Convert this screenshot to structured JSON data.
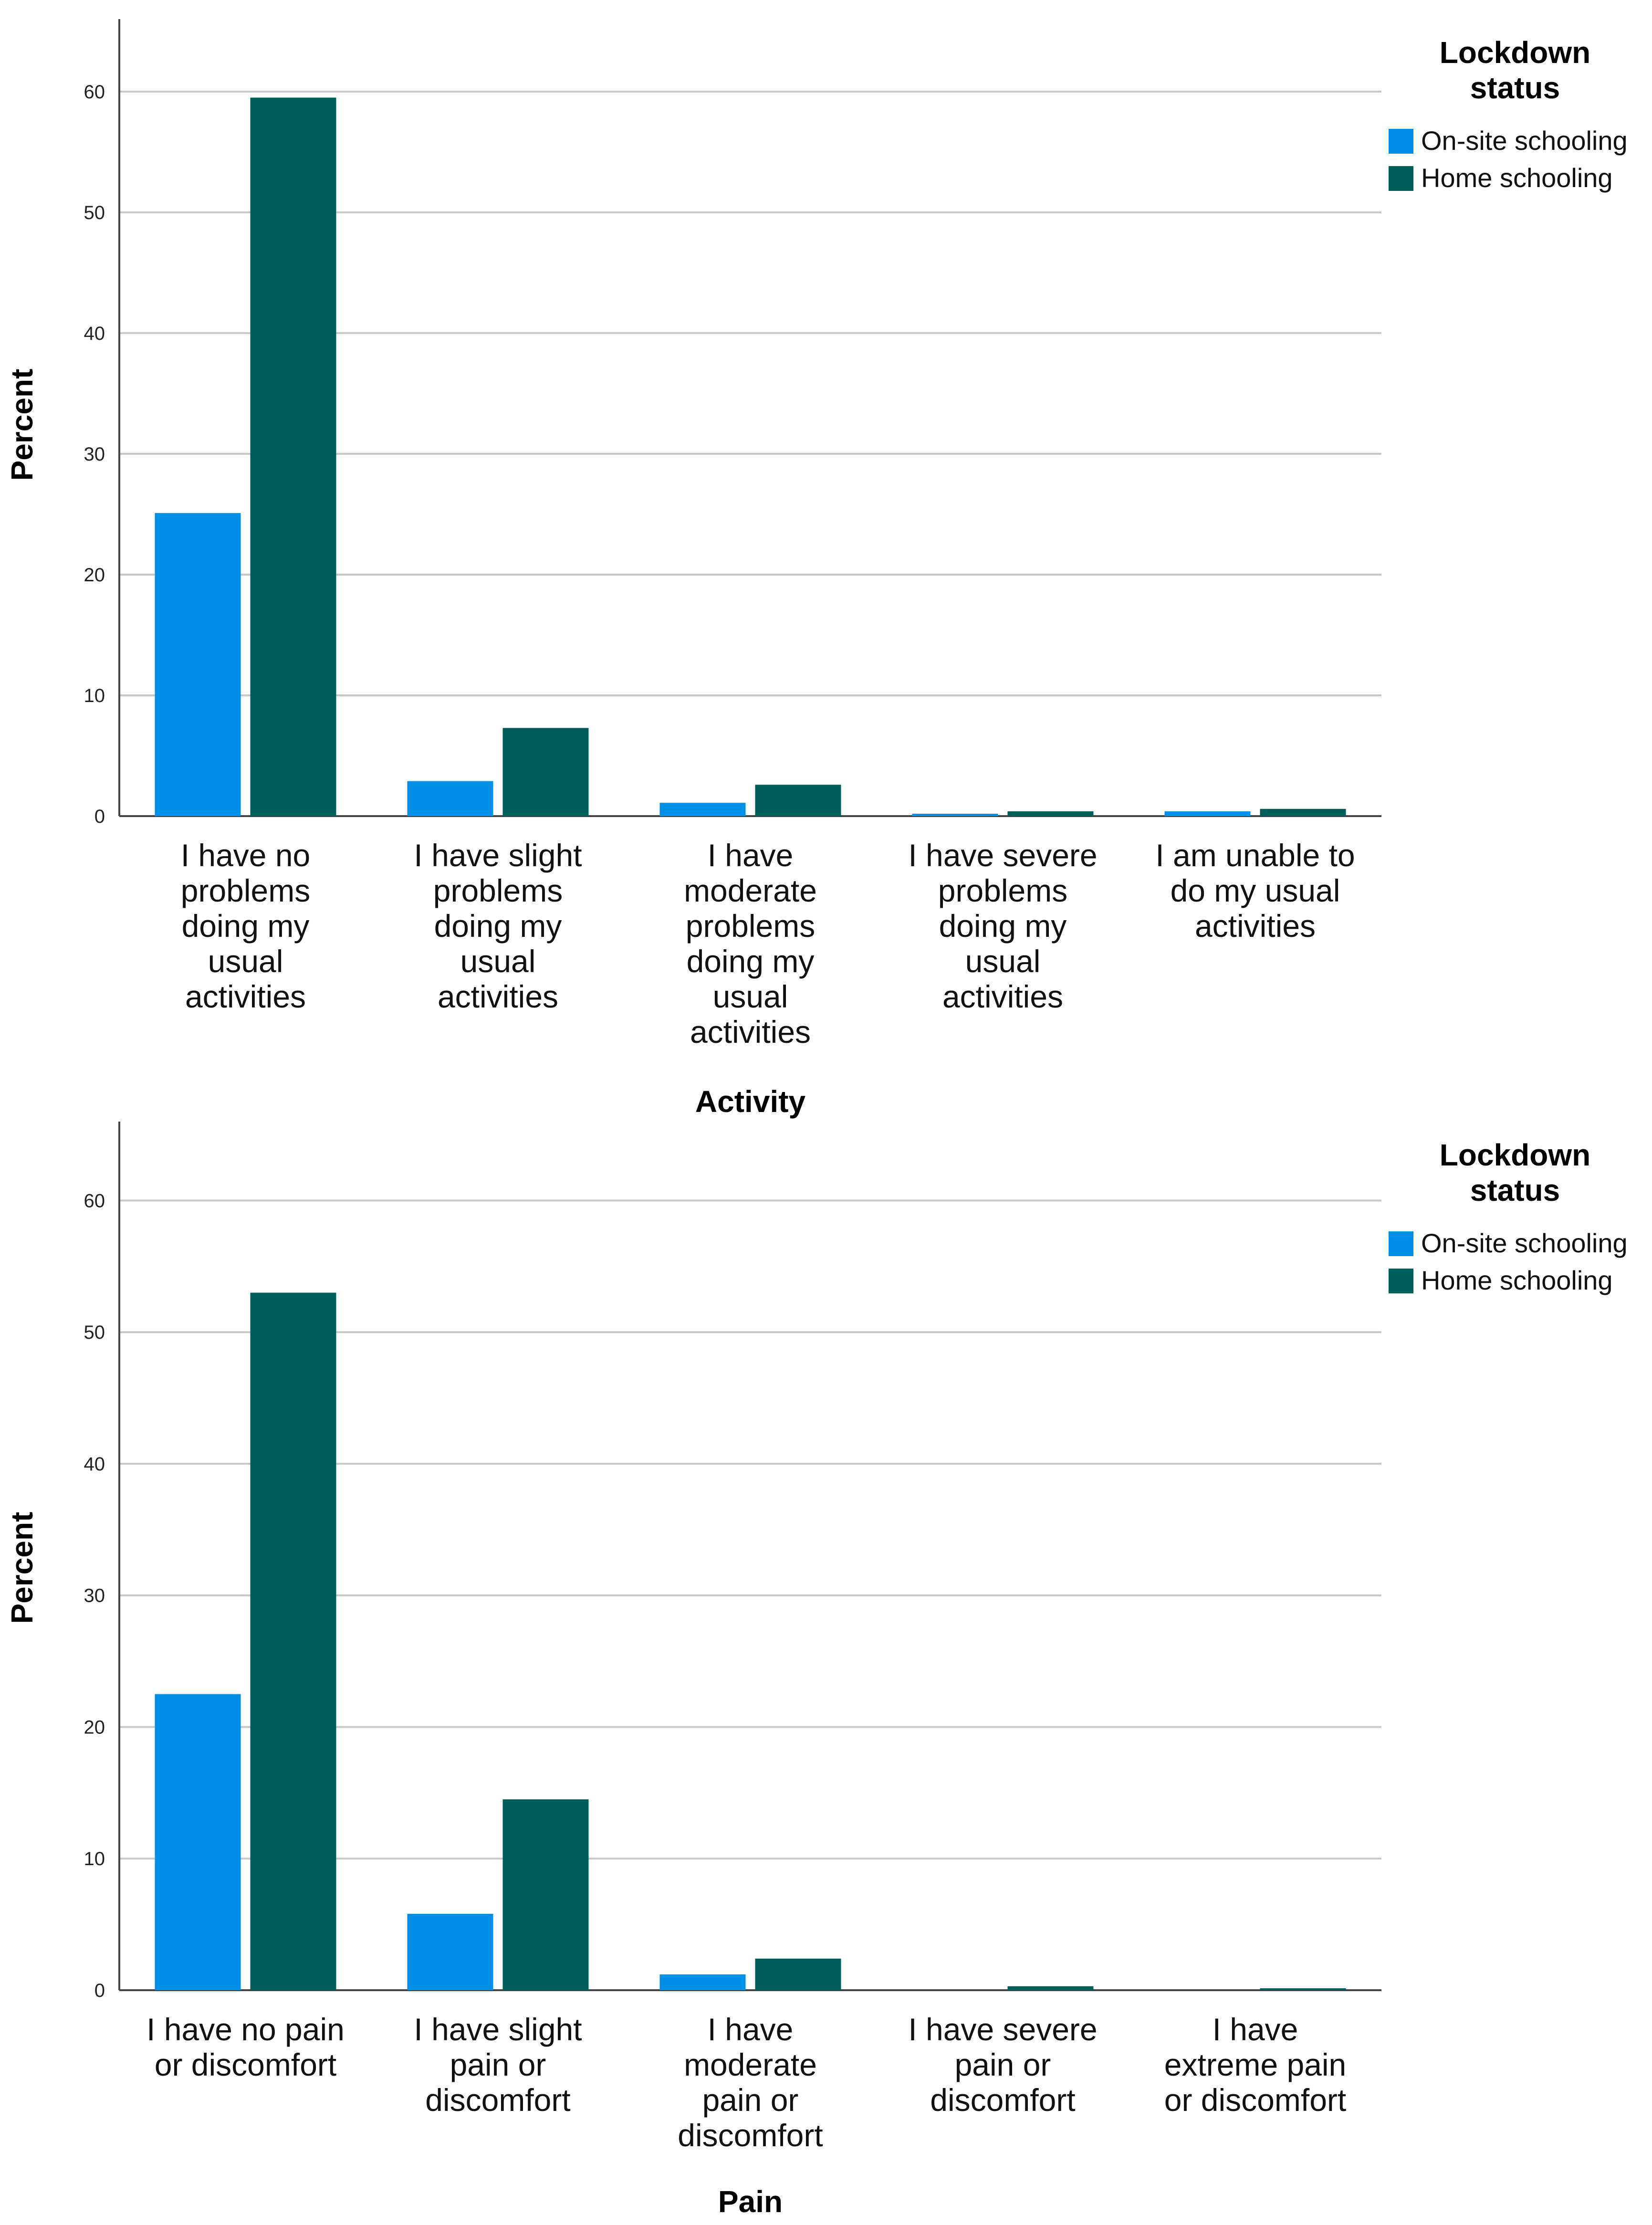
{
  "colors": {
    "on_site": "#0091e6",
    "home": "#005e5b",
    "grid": "#c8c8c8",
    "axis": "#444444"
  },
  "legend": {
    "title_line1": "Lockdown",
    "title_line2": "status"
  },
  "chart_data": [
    {
      "type": "bar",
      "title": "",
      "xlabel": "Activity",
      "ylabel": "Percent",
      "ylim": [
        0,
        66
      ],
      "yticks": [
        0,
        10,
        20,
        30,
        40,
        50,
        60
      ],
      "grid": true,
      "legend_position": "top-right",
      "categories": [
        [
          "I have no",
          "problems",
          "doing my",
          "usual",
          "activities"
        ],
        [
          "I have slight",
          "problems",
          "doing my",
          "usual",
          "activities"
        ],
        [
          "I have",
          "moderate",
          "problems",
          "doing my",
          "usual",
          "activities"
        ],
        [
          "I have severe",
          "problems",
          "doing my",
          "usual",
          "activities"
        ],
        [
          "I am unable to",
          "do my usual",
          "activities"
        ]
      ],
      "series": [
        {
          "name": "On-site schooling",
          "values": [
            25.1,
            2.9,
            1.1,
            0.2,
            0.4
          ]
        },
        {
          "name": "Home schooling",
          "values": [
            59.5,
            7.3,
            2.6,
            0.4,
            0.6
          ]
        }
      ]
    },
    {
      "type": "bar",
      "title": "",
      "xlabel": "Pain",
      "ylabel": "Percent",
      "ylim": [
        0,
        66
      ],
      "yticks": [
        0,
        10,
        20,
        30,
        40,
        50,
        60
      ],
      "grid": true,
      "legend_position": "top-right",
      "categories": [
        [
          "I have no pain",
          "or discomfort"
        ],
        [
          "I have slight",
          "pain or",
          "discomfort"
        ],
        [
          "I have",
          "moderate",
          "pain or",
          "discomfort"
        ],
        [
          "I have severe",
          "pain or",
          "discomfort"
        ],
        [
          "I have",
          "extreme pain",
          "or discomfort"
        ]
      ],
      "series": [
        {
          "name": "On-site schooling",
          "values": [
            22.5,
            5.8,
            1.2,
            0.0,
            0.0
          ]
        },
        {
          "name": "Home schooling",
          "values": [
            53.0,
            14.5,
            2.4,
            0.3,
            0.1
          ]
        }
      ]
    }
  ]
}
